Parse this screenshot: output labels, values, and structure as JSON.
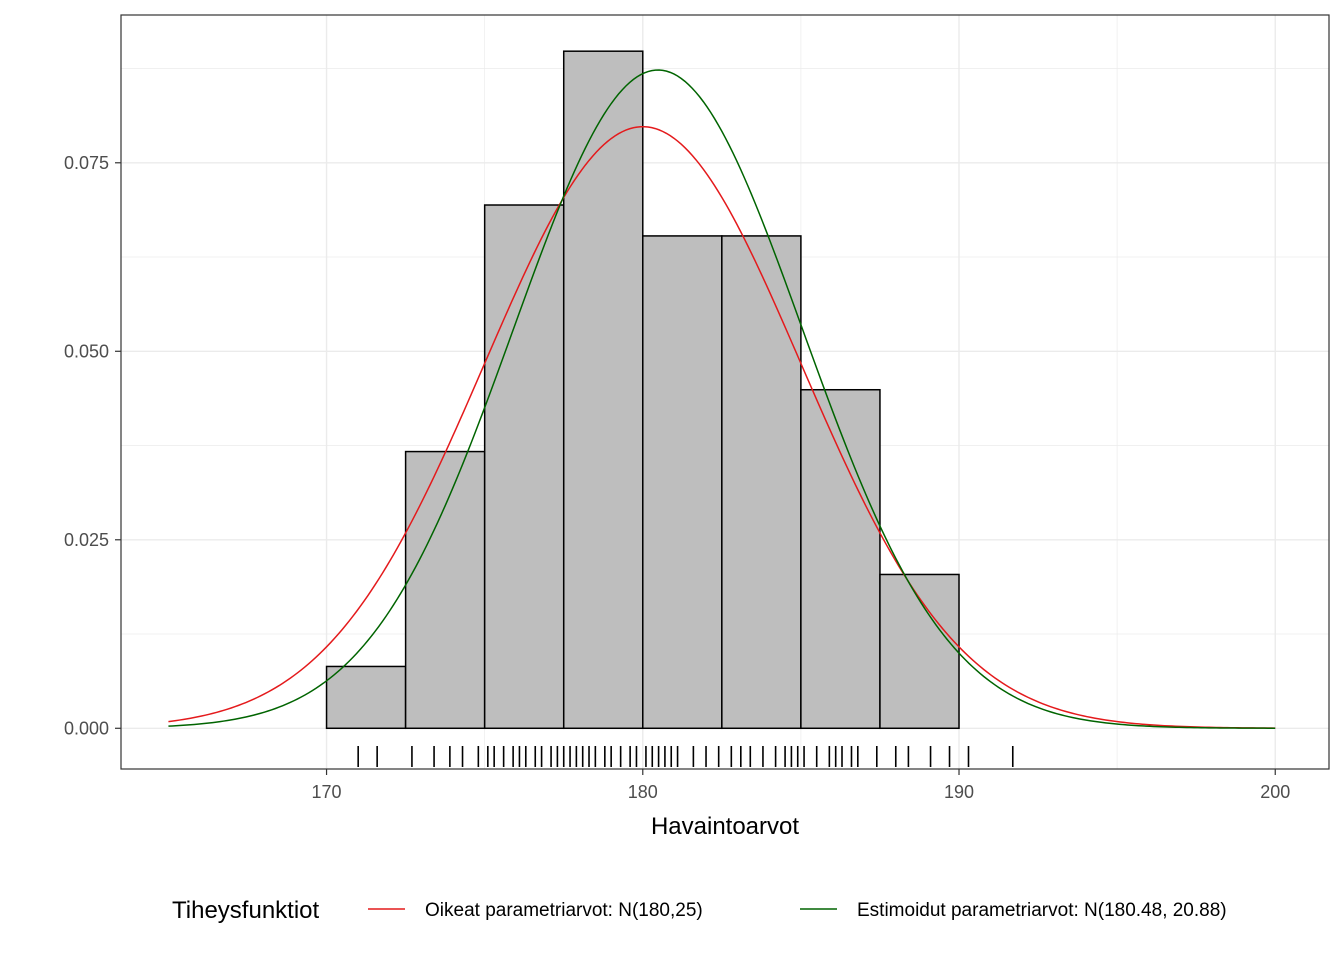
{
  "chart_data": {
    "type": "histogram",
    "xlabel": "Havaintoarvot",
    "ylabel": "",
    "xlim": [
      163.5,
      201.7
    ],
    "ylim": [
      -0.0054,
      0.0946
    ],
    "x_ticks": [
      170,
      180,
      190,
      200
    ],
    "x_tick_labels": [
      "170",
      "180",
      "190",
      "200"
    ],
    "y_ticks": [
      0.0,
      0.025,
      0.05,
      0.075
    ],
    "y_tick_labels": [
      "0.000",
      "0.025",
      "0.050",
      "0.075"
    ],
    "grid": true,
    "bins": [
      {
        "x0": 170.0,
        "x1": 172.5,
        "density": 0.0082
      },
      {
        "x0": 172.5,
        "x1": 175.0,
        "density": 0.0367
      },
      {
        "x0": 175.0,
        "x1": 177.5,
        "density": 0.0694
      },
      {
        "x0": 177.5,
        "x1": 180.0,
        "density": 0.0898
      },
      {
        "x0": 180.0,
        "x1": 182.5,
        "density": 0.0653
      },
      {
        "x0": 182.5,
        "x1": 185.0,
        "density": 0.0653
      },
      {
        "x0": 185.0,
        "x1": 187.5,
        "density": 0.0449
      },
      {
        "x0": 187.5,
        "x1": 190.0,
        "density": 0.0204
      }
    ],
    "rug": [
      171.0,
      171.6,
      172.7,
      173.4,
      173.9,
      174.3,
      174.8,
      175.1,
      175.3,
      175.6,
      175.9,
      176.1,
      176.3,
      176.6,
      176.8,
      177.1,
      177.3,
      177.5,
      177.7,
      177.9,
      178.1,
      178.3,
      178.5,
      178.8,
      179.0,
      179.3,
      179.6,
      179.8,
      180.1,
      180.3,
      180.5,
      180.7,
      180.9,
      181.1,
      181.6,
      182.0,
      182.4,
      182.8,
      183.1,
      183.4,
      183.8,
      184.2,
      184.5,
      184.7,
      184.9,
      185.1,
      185.5,
      185.9,
      186.1,
      186.3,
      186.6,
      186.8,
      187.4,
      188.0,
      188.4,
      189.1,
      189.7,
      190.3,
      191.7
    ],
    "series": [
      {
        "name": "Oikeat parametriarvot: N(180,25)",
        "mean": 180,
        "variance": 25,
        "color": "#e41a1c",
        "x_range": [
          165,
          200
        ]
      },
      {
        "name": "Estimoidut parametriarvot: N(180.48, 20.88)",
        "mean": 180.48,
        "variance": 20.88,
        "color": "#006400",
        "x_range": [
          165,
          200
        ]
      }
    ],
    "legend": {
      "title": "Tiheysfunktiot",
      "position": "bottom"
    },
    "colors": {
      "bar_fill": "#bebebe",
      "bar_stroke": "#000000",
      "grid": "#ebebeb",
      "panel_border": "#333333"
    }
  }
}
